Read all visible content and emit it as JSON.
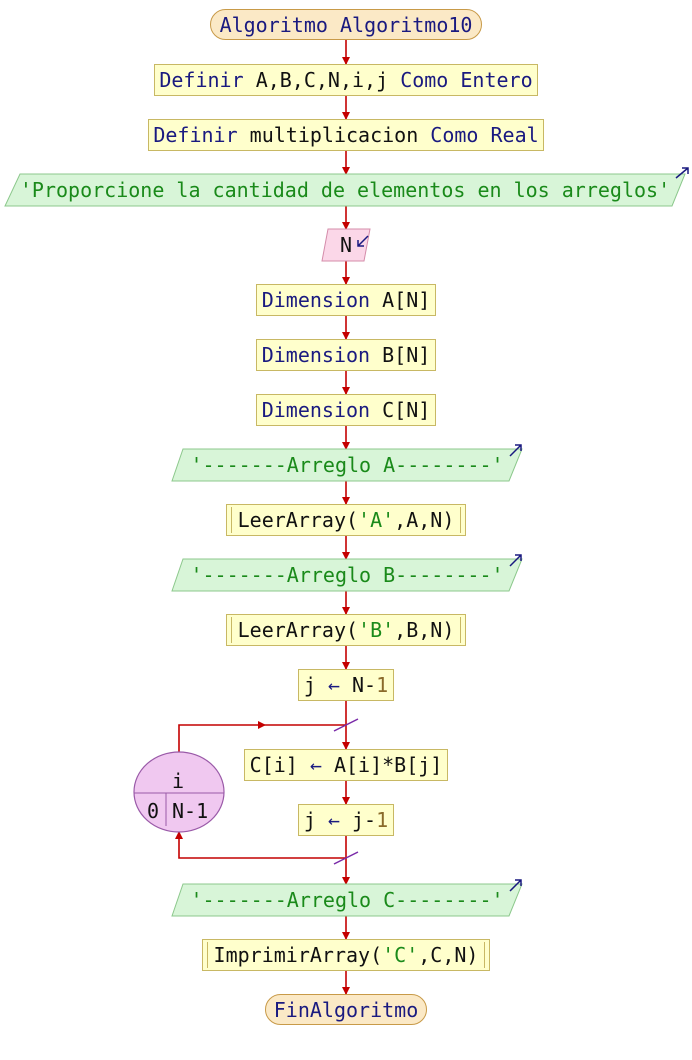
{
  "colors": {
    "arrow": "#c40000",
    "process_fill": "#ffffcc",
    "output_fill": "#d8f5d8",
    "input_fill": "#fbd7e8",
    "loop_fill": "#f0c8f0",
    "terminal_fill": "#fbe9c6",
    "keyword": "#1a1a80",
    "string": "#1a8a1a",
    "number": "#8a6a2a"
  },
  "start": {
    "kw": "Algoritmo",
    "name": "Algoritmo10"
  },
  "def1": {
    "kw1": "Definir",
    "vars": "A,B,C,N,i,j",
    "kw2": "Como Entero"
  },
  "def2": {
    "kw1": "Definir",
    "vars": "multiplicacion",
    "kw2": "Como Real"
  },
  "out1": "'Proporcione la cantidad de elementos en los arreglos'",
  "in1": "N",
  "dimA": {
    "kw": "Dimension",
    "arg": "A[N]"
  },
  "dimB": {
    "kw": "Dimension",
    "arg": "B[N]"
  },
  "dimC": {
    "kw": "Dimension",
    "arg": "C[N]"
  },
  "outA": "'-------Arreglo A--------'",
  "callA": {
    "fn": "LeerArray(",
    "str": "'A'",
    "rest": ",A,N)"
  },
  "outB": "'-------Arreglo B--------'",
  "callB": {
    "fn": "LeerArray(",
    "str": "'B'",
    "rest": ",B,N)"
  },
  "assign1": {
    "lhs": "j",
    "arrow": "←",
    "rhs": "N-",
    "num": "1"
  },
  "loop": {
    "var": "i",
    "from": "0",
    "to": "N-1"
  },
  "assign2": {
    "lhs": "C[i]",
    "arrow": "←",
    "rhs": "A[i]*B[j]"
  },
  "assign3": {
    "lhs": "j",
    "arrow": "←",
    "rhs": "j-",
    "num": "1"
  },
  "outC": "'-------Arreglo C--------'",
  "callC": {
    "fn": "ImprimirArray(",
    "str": "'C'",
    "rest": ",C,N)"
  },
  "end": "FinAlgoritmo"
}
